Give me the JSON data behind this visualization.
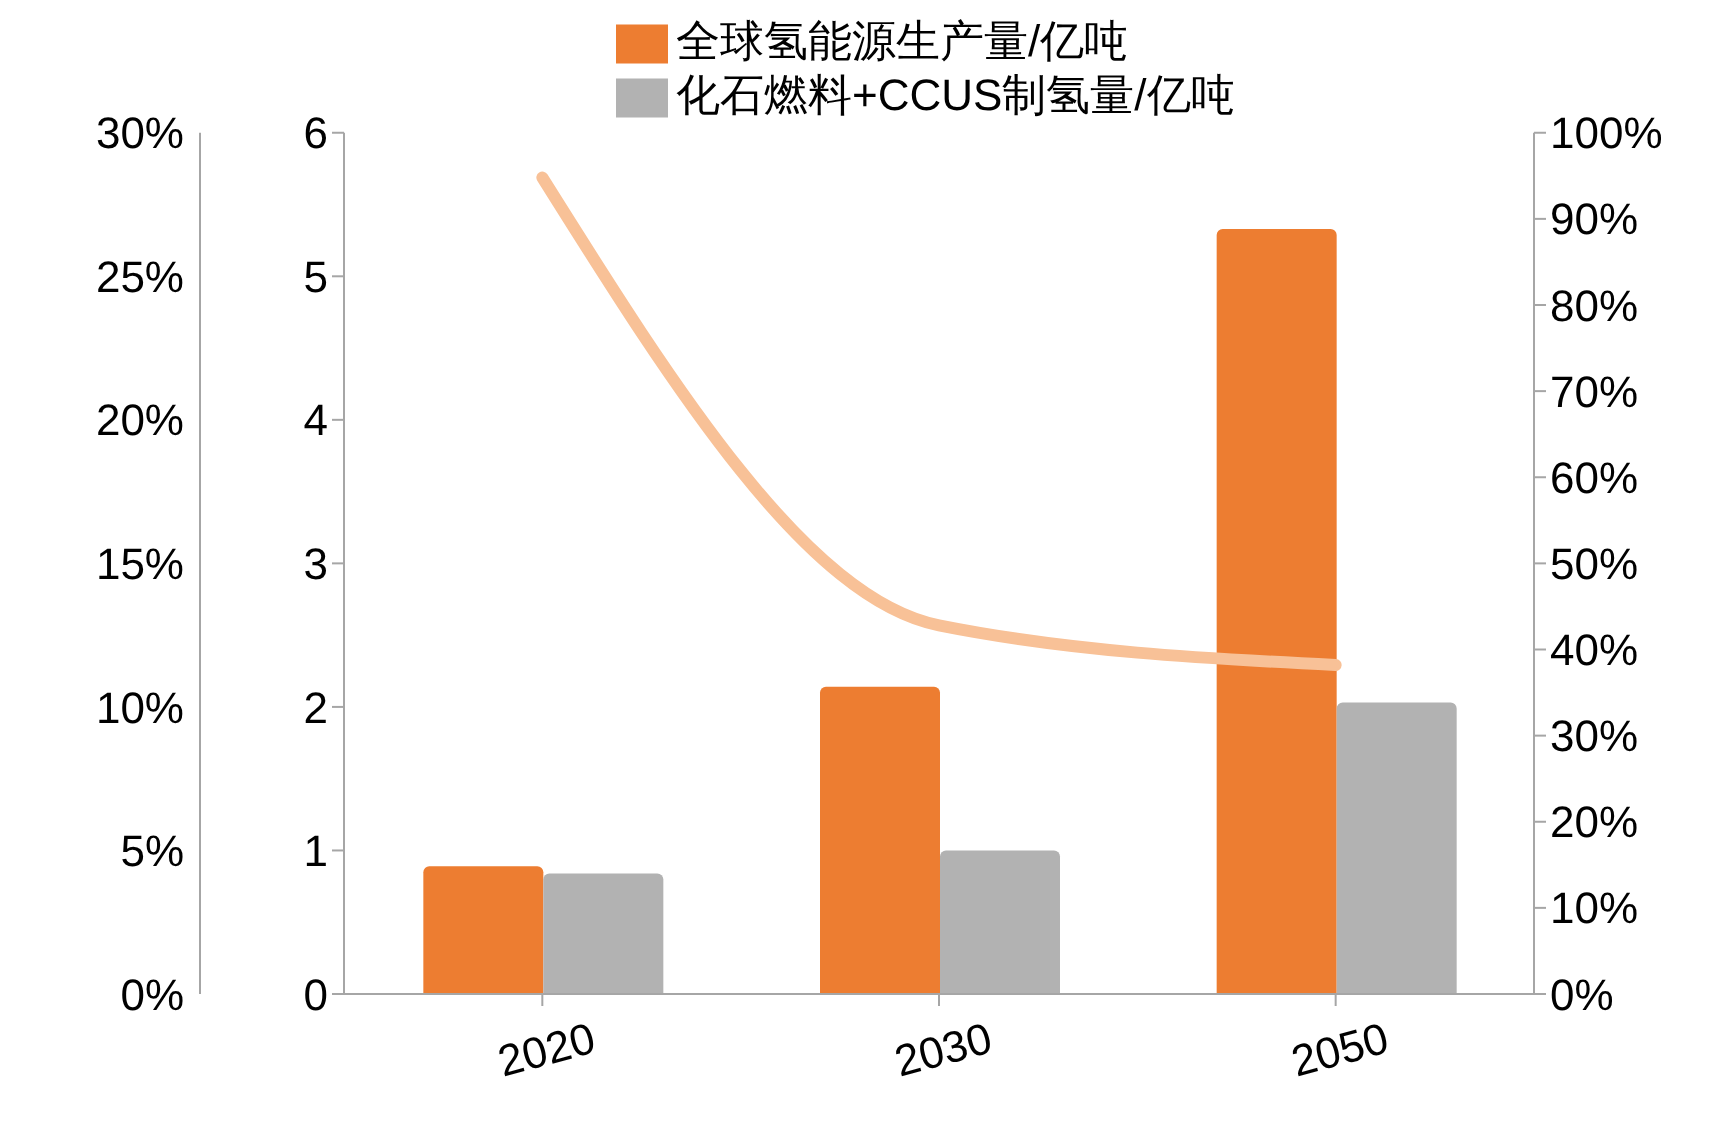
{
  "chart_data": {
    "type": "bar",
    "categories": [
      "2020",
      "2030",
      "2050"
    ],
    "series": [
      {
        "name": "全球氢能源生产量/亿吨",
        "color": "#ed7d31",
        "values": [
          0.89,
          2.14,
          5.33
        ]
      },
      {
        "name": "化石燃料+CCUS制氢量/亿吨",
        "color": "#b2b2b2",
        "values": [
          0.84,
          1.0,
          2.03
        ]
      },
      {
        "type": "line",
        "axis": "y2",
        "color": "#f8c197",
        "values": [
          94.8,
          42.8,
          38.2
        ]
      }
    ],
    "ylim": [
      0,
      6
    ],
    "yticks": [
      0,
      1,
      2,
      3,
      4,
      5,
      6
    ],
    "y2lim": [
      0,
      100
    ],
    "y2ticks": [
      {
        "value": 0,
        "label": "0%"
      },
      {
        "value": 10,
        "label": "10%"
      },
      {
        "value": 20,
        "label": "20%"
      },
      {
        "value": 30,
        "label": "30%"
      },
      {
        "value": 40,
        "label": "40%"
      },
      {
        "value": 50,
        "label": "50%"
      },
      {
        "value": 60,
        "label": "60%"
      },
      {
        "value": 70,
        "label": "70%"
      },
      {
        "value": 80,
        "label": "80%"
      },
      {
        "value": 90,
        "label": "90%"
      },
      {
        "value": 100,
        "label": "100%"
      }
    ],
    "y3lim": [
      0,
      30
    ],
    "y3ticks": [
      {
        "value": 0,
        "label": "0%"
      },
      {
        "value": 5,
        "label": "5%"
      },
      {
        "value": 10,
        "label": "10%"
      },
      {
        "value": 15,
        "label": "15%"
      },
      {
        "value": 20,
        "label": "20%"
      },
      {
        "value": 25,
        "label": "25%"
      },
      {
        "value": 30,
        "label": "30%"
      }
    ],
    "legend": "top",
    "grid": false,
    "marker": "none",
    "line_style": "solid"
  }
}
